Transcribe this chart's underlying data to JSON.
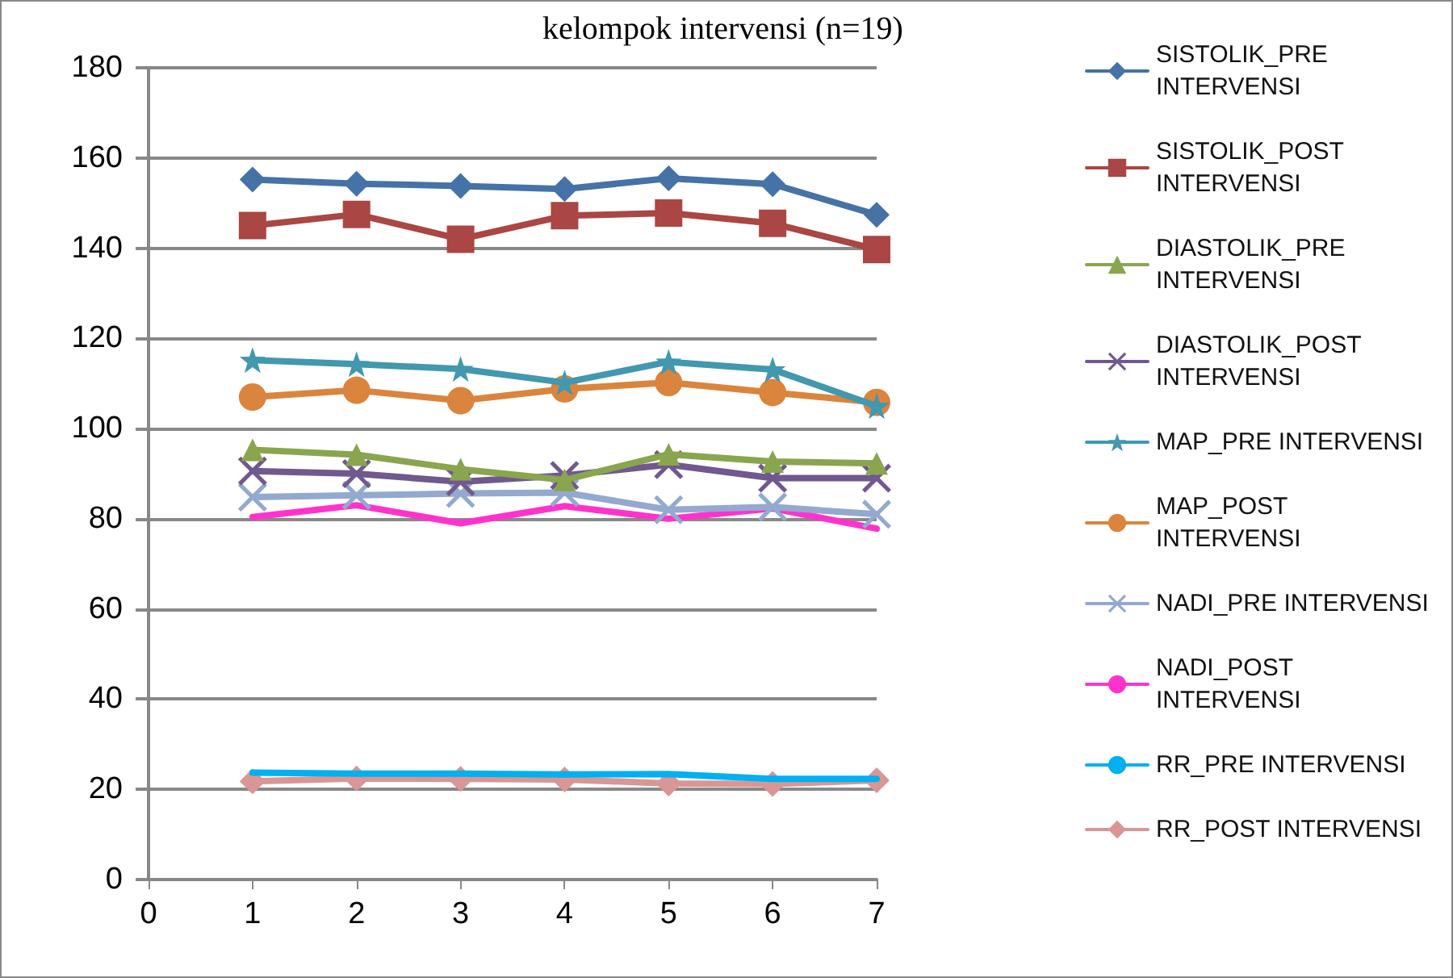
{
  "chart_data": {
    "type": "line",
    "title": "kelompok intervensi (n=19)",
    "x": [
      1,
      2,
      3,
      4,
      5,
      6,
      7
    ],
    "xlim": [
      0,
      7
    ],
    "xticks": [
      0,
      1,
      2,
      3,
      4,
      5,
      6,
      7
    ],
    "ylim": [
      0,
      180
    ],
    "yticks": [
      0,
      20,
      40,
      60,
      80,
      100,
      120,
      140,
      160,
      180
    ],
    "grid": "y",
    "legend": "right",
    "series": [
      {
        "name": "SISTOLIK_PRE INTERVENSI",
        "color": "#4572a7",
        "marker": "diamond",
        "values": [
          155.2,
          154.3,
          153.8,
          153.1,
          155.5,
          154.2,
          147.4
        ]
      },
      {
        "name": "SISTOLIK_POST INTERVENSI",
        "color": "#aa4643",
        "marker": "square",
        "values": [
          145,
          147.5,
          142,
          147.2,
          147.8,
          145.5,
          139.7
        ]
      },
      {
        "name": "DIASTOLIK_PRE INTERVENSI",
        "color": "#89a54e",
        "marker": "triangle",
        "values": [
          95.3,
          94.2,
          91,
          88.6,
          94.3,
          92.7,
          92.3
        ]
      },
      {
        "name": "DIASTOLIK_POST INTERVENSI",
        "color": "#71588f",
        "marker": "cross",
        "values": [
          90.6,
          90,
          88.2,
          89.6,
          92,
          89,
          89
        ]
      },
      {
        "name": "MAP_PRE INTERVENSI",
        "color": "#4198af",
        "marker": "star",
        "values": [
          115.2,
          114.3,
          113.2,
          110.2,
          114.8,
          113.1,
          105
        ]
      },
      {
        "name": "MAP_POST INTERVENSI",
        "color": "#db843d",
        "marker": "circle",
        "values": [
          107,
          108.5,
          106.2,
          108.8,
          110.2,
          108,
          105.8
        ]
      },
      {
        "name": "NADI_PRE INTERVENSI",
        "color": "#93a9cf",
        "marker": "cross",
        "values": [
          84.8,
          85.2,
          85.6,
          85.8,
          82,
          82.6,
          81
        ]
      },
      {
        "name": "NADI_POST INTERVENSI",
        "color": "#ff33cc",
        "marker": "none",
        "values": [
          80.4,
          83,
          79,
          82.8,
          80,
          82.3,
          77.8
        ]
      },
      {
        "name": "RR_PRE INTERVENSI",
        "color": "#00b0f0",
        "marker": "none",
        "values": [
          23.7,
          23.5,
          23.5,
          23.3,
          23.4,
          22.3,
          22.3
        ]
      },
      {
        "name": "RR_POST INTERVENSI",
        "color": "#d99694",
        "marker": "diamond",
        "values": [
          21.8,
          22.4,
          22.3,
          22.2,
          21.3,
          21.2,
          22
        ]
      }
    ]
  }
}
